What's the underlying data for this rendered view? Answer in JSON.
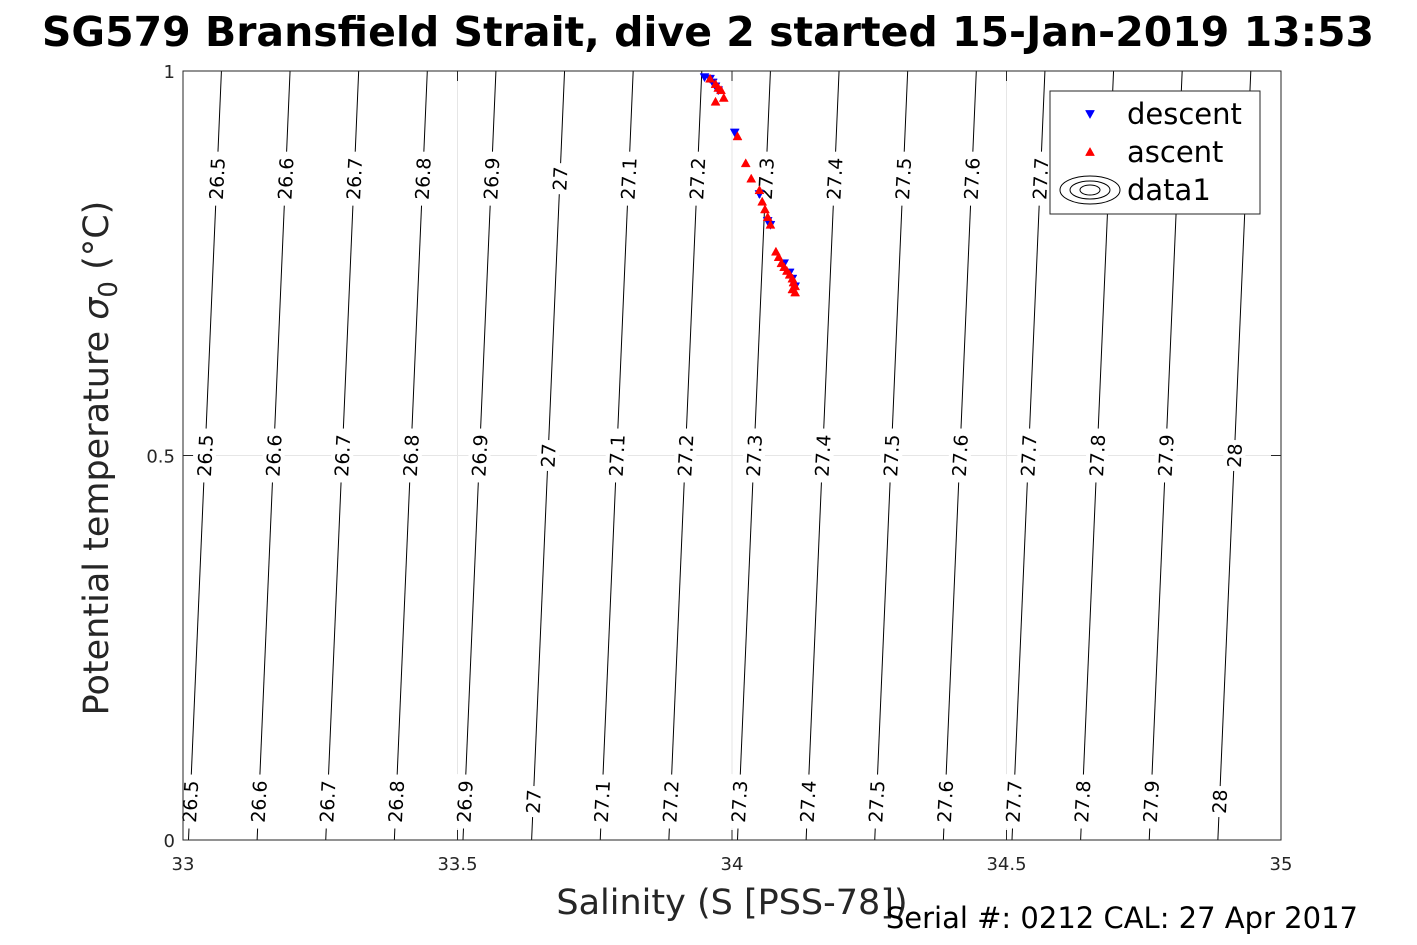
{
  "chart_data": {
    "type": "scatter",
    "title": "SG579 Bransfield Strait, dive 2 started 15-Jan-2019 13:53",
    "xlabel": "Salinity (S [PSS-78])",
    "ylabel_main": "Potential temperature ",
    "ylabel_sigma": "σ",
    "ylabel_sub": "0",
    "ylabel_unit": " (°C)",
    "xlim": [
      33,
      35
    ],
    "ylim": [
      0,
      1
    ],
    "x_ticks": [
      {
        "value": 33,
        "label": "33"
      },
      {
        "value": 33.5,
        "label": "33.5"
      },
      {
        "value": 34,
        "label": "34"
      },
      {
        "value": 34.5,
        "label": "34.5"
      },
      {
        "value": 35,
        "label": "35"
      }
    ],
    "y_ticks": [
      {
        "value": 0,
        "label": "0"
      },
      {
        "value": 0.5,
        "label": "0.5"
      },
      {
        "value": 1,
        "label": "1"
      }
    ],
    "grid": true,
    "legend_position": "top-right",
    "legend": [
      {
        "label": "descent",
        "marker": "triangle-down",
        "color": "#0000ff"
      },
      {
        "label": "ascent",
        "marker": "triangle-up",
        "color": "#ff0000"
      },
      {
        "label": "data1",
        "marker": "contour",
        "color": "#000000"
      }
    ],
    "series": [
      {
        "name": "descent",
        "color": "#0000ff",
        "marker": "triangle-down",
        "points": [
          [
            33.95,
            0.992
          ],
          [
            33.96,
            0.99
          ],
          [
            33.965,
            0.985
          ],
          [
            33.97,
            0.98
          ],
          [
            33.975,
            0.975
          ],
          [
            34.005,
            0.92
          ],
          [
            34.05,
            0.84
          ],
          [
            34.065,
            0.805
          ],
          [
            34.07,
            0.8
          ],
          [
            34.095,
            0.75
          ],
          [
            34.105,
            0.738
          ],
          [
            34.11,
            0.73
          ],
          [
            34.115,
            0.72
          ]
        ]
      },
      {
        "name": "ascent",
        "color": "#ff0000",
        "marker": "triangle-up",
        "points": [
          [
            33.96,
            0.99
          ],
          [
            33.97,
            0.983
          ],
          [
            33.975,
            0.978
          ],
          [
            33.98,
            0.975
          ],
          [
            33.985,
            0.965
          ],
          [
            33.97,
            0.96
          ],
          [
            34.01,
            0.915
          ],
          [
            34.025,
            0.88
          ],
          [
            34.035,
            0.86
          ],
          [
            34.05,
            0.845
          ],
          [
            34.055,
            0.83
          ],
          [
            34.06,
            0.82
          ],
          [
            34.065,
            0.81
          ],
          [
            34.07,
            0.8
          ],
          [
            34.08,
            0.765
          ],
          [
            34.085,
            0.758
          ],
          [
            34.09,
            0.75
          ],
          [
            34.095,
            0.745
          ],
          [
            34.1,
            0.74
          ],
          [
            34.105,
            0.735
          ],
          [
            34.11,
            0.73
          ],
          [
            34.112,
            0.725
          ],
          [
            34.115,
            0.72
          ],
          [
            34.11,
            0.716
          ],
          [
            34.115,
            0.712
          ]
        ]
      }
    ],
    "density_contours": {
      "series": "data1",
      "color": "#000000",
      "levels": [
        26.5,
        26.6,
        26.7,
        26.8,
        26.9,
        27,
        27.1,
        27.2,
        27.3,
        27.4,
        27.5,
        27.6,
        27.7,
        27.8,
        27.9,
        28
      ],
      "level_labels": [
        "26.5",
        "26.6",
        "26.7",
        "26.8",
        "26.9",
        "27",
        "27.1",
        "27.2",
        "27.3",
        "27.4",
        "27.5",
        "27.6",
        "27.7",
        "27.8",
        "27.9",
        "28"
      ],
      "salinity_at_t0": [
        33.01,
        33.135,
        33.26,
        33.385,
        33.51,
        33.635,
        33.76,
        33.885,
        34.01,
        34.135,
        34.26,
        34.385,
        34.51,
        34.635,
        34.76,
        34.885
      ],
      "salinity_at_t1": [
        33.07,
        33.195,
        33.32,
        33.445,
        33.57,
        33.695,
        33.82,
        33.945,
        34.07,
        34.195,
        34.32,
        34.445,
        34.57,
        34.695,
        34.82,
        34.945
      ]
    }
  },
  "footer": {
    "serial_text": "Serial #: 0212  CAL: 27 Apr 2017"
  }
}
